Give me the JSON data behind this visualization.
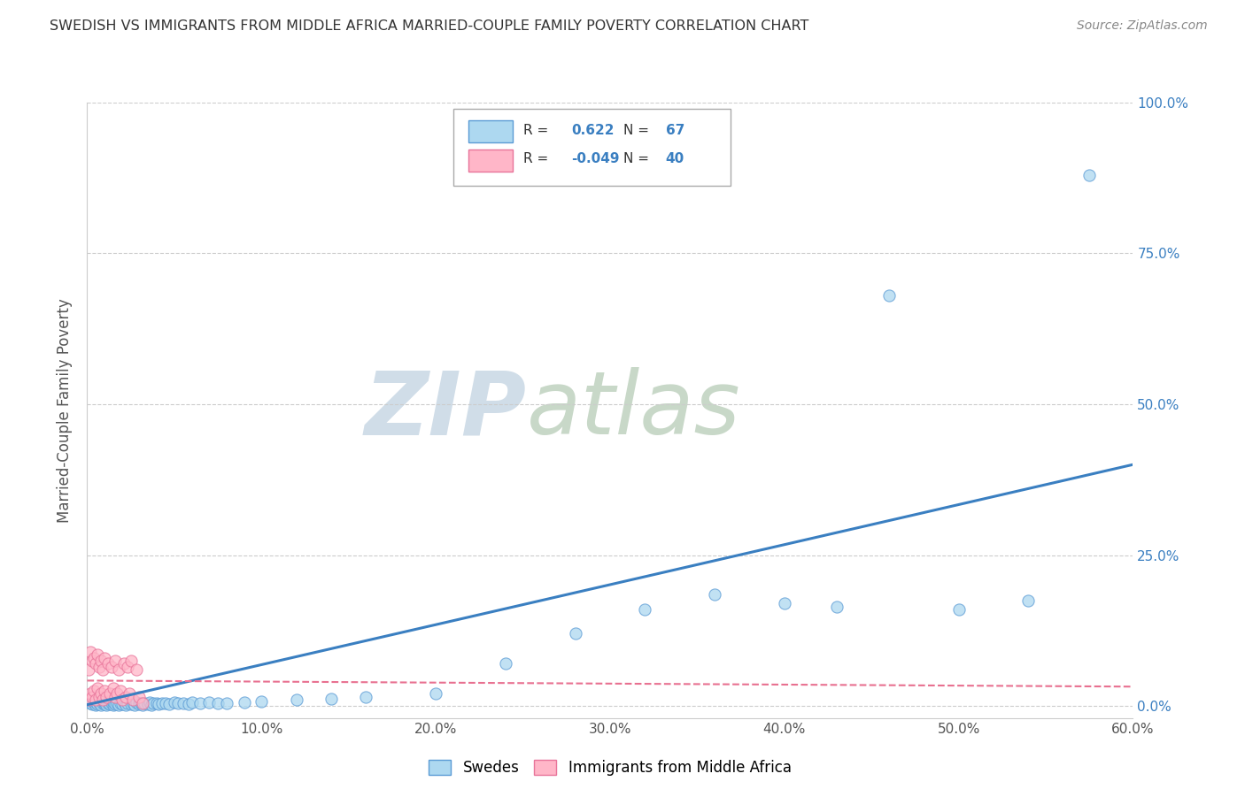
{
  "title": "SWEDISH VS IMMIGRANTS FROM MIDDLE AFRICA MARRIED-COUPLE FAMILY POVERTY CORRELATION CHART",
  "source": "Source: ZipAtlas.com",
  "ylabel": "Married-Couple Family Poverty",
  "xlim": [
    0.0,
    0.6
  ],
  "ylim": [
    -0.02,
    1.0
  ],
  "xticks": [
    0.0,
    0.1,
    0.2,
    0.3,
    0.4,
    0.5,
    0.6
  ],
  "yticks": [
    0.0,
    0.25,
    0.5,
    0.75,
    1.0
  ],
  "xticklabels": [
    "0.0%",
    "10.0%",
    "20.0%",
    "30.0%",
    "40.0%",
    "50.0%",
    "60.0%"
  ],
  "yticklabels": [
    "0.0%",
    "25.0%",
    "50.0%",
    "75.0%",
    "100.0%"
  ],
  "legend_labels": [
    "Swedes",
    "Immigrants from Middle Africa"
  ],
  "blue_R": 0.622,
  "blue_N": 67,
  "pink_R": -0.049,
  "pink_N": 40,
  "blue_color": "#add8f0",
  "pink_color": "#ffb6c8",
  "blue_edge_color": "#5b9bd5",
  "pink_edge_color": "#e8749a",
  "blue_line_color": "#3a7fc1",
  "pink_line_color": "#e87090",
  "grid_color": "#cccccc",
  "watermark_zip_color": "#d0dde8",
  "watermark_atlas_color": "#c8d8c8",
  "blue_scatter_x": [
    0.002,
    0.003,
    0.004,
    0.005,
    0.005,
    0.006,
    0.007,
    0.008,
    0.009,
    0.01,
    0.01,
    0.011,
    0.012,
    0.013,
    0.014,
    0.015,
    0.015,
    0.016,
    0.017,
    0.018,
    0.019,
    0.02,
    0.021,
    0.022,
    0.023,
    0.025,
    0.026,
    0.027,
    0.028,
    0.03,
    0.031,
    0.032,
    0.033,
    0.035,
    0.036,
    0.037,
    0.038,
    0.04,
    0.041,
    0.043,
    0.045,
    0.047,
    0.05,
    0.052,
    0.055,
    0.058,
    0.06,
    0.065,
    0.07,
    0.075,
    0.08,
    0.09,
    0.1,
    0.12,
    0.14,
    0.16,
    0.2,
    0.24,
    0.28,
    0.32,
    0.36,
    0.4,
    0.43,
    0.46,
    0.5,
    0.54,
    0.575
  ],
  "blue_scatter_y": [
    0.005,
    0.003,
    0.004,
    0.002,
    0.006,
    0.003,
    0.004,
    0.002,
    0.005,
    0.003,
    0.006,
    0.002,
    0.004,
    0.003,
    0.005,
    0.002,
    0.006,
    0.003,
    0.004,
    0.002,
    0.005,
    0.003,
    0.006,
    0.002,
    0.004,
    0.003,
    0.005,
    0.002,
    0.006,
    0.003,
    0.004,
    0.002,
    0.005,
    0.003,
    0.006,
    0.002,
    0.004,
    0.005,
    0.003,
    0.004,
    0.005,
    0.003,
    0.006,
    0.004,
    0.005,
    0.003,
    0.006,
    0.005,
    0.006,
    0.004,
    0.005,
    0.006,
    0.008,
    0.01,
    0.012,
    0.015,
    0.02,
    0.07,
    0.12,
    0.16,
    0.185,
    0.17,
    0.165,
    0.68,
    0.16,
    0.175,
    0.88
  ],
  "pink_scatter_x": [
    0.001,
    0.001,
    0.002,
    0.002,
    0.003,
    0.003,
    0.004,
    0.004,
    0.005,
    0.005,
    0.006,
    0.006,
    0.007,
    0.007,
    0.008,
    0.008,
    0.009,
    0.009,
    0.01,
    0.01,
    0.011,
    0.012,
    0.013,
    0.014,
    0.015,
    0.016,
    0.016,
    0.017,
    0.018,
    0.019,
    0.02,
    0.021,
    0.022,
    0.023,
    0.024,
    0.025,
    0.026,
    0.028,
    0.03,
    0.032
  ],
  "pink_scatter_y": [
    0.01,
    0.06,
    0.02,
    0.09,
    0.015,
    0.075,
    0.025,
    0.08,
    0.01,
    0.07,
    0.03,
    0.085,
    0.015,
    0.065,
    0.02,
    0.075,
    0.01,
    0.06,
    0.025,
    0.08,
    0.015,
    0.07,
    0.02,
    0.065,
    0.03,
    0.015,
    0.075,
    0.02,
    0.06,
    0.025,
    0.01,
    0.07,
    0.015,
    0.065,
    0.02,
    0.075,
    0.01,
    0.06,
    0.015,
    0.005
  ],
  "blue_line_x0": 0.0,
  "blue_line_x1": 0.6,
  "blue_line_y0": 0.002,
  "blue_line_y1": 0.4,
  "pink_line_x0": 0.0,
  "pink_line_x1": 0.6,
  "pink_line_y0": 0.042,
  "pink_line_y1": 0.032
}
